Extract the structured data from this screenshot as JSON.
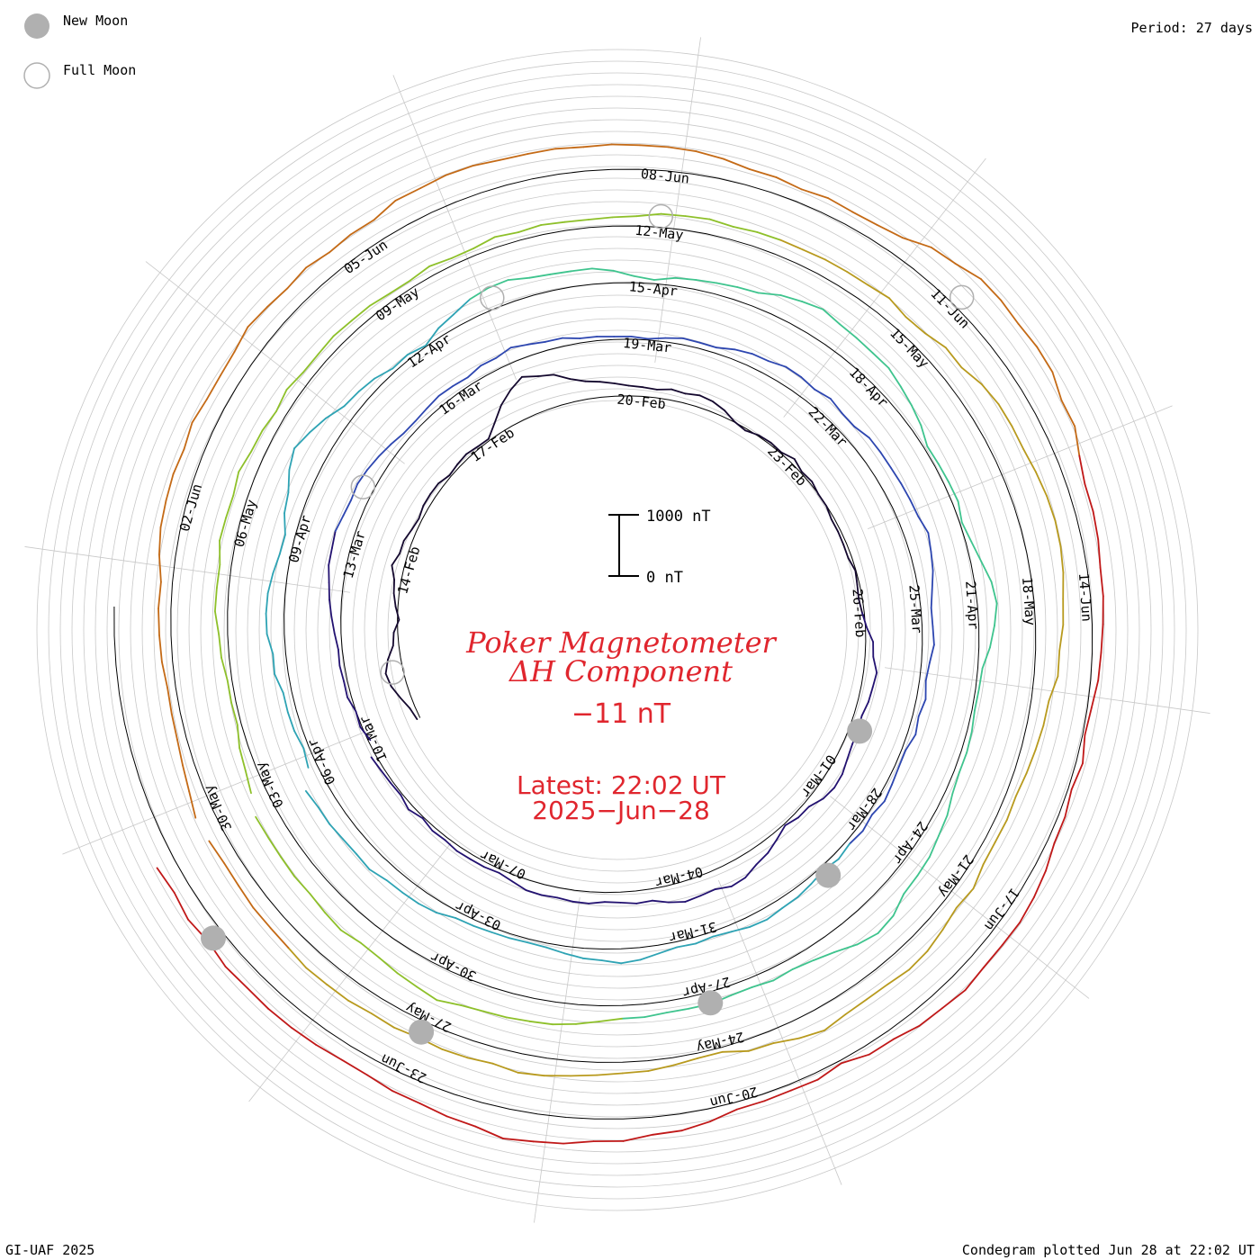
{
  "legend": {
    "new_moon_label": "New Moon",
    "full_moon_label": "Full Moon"
  },
  "period_label": "Period: 27 days",
  "credit": "GI-UAF 2025",
  "plotted_label": "Condegram plotted Jun 28 at 22:02 UT",
  "center": {
    "title_line1": "Poker Magnetometer",
    "title_line2": "ΔH Component",
    "current_value": "−11 nT",
    "latest_line1": "Latest: 22:02 UT",
    "latest_line2": "2025−Jun−28"
  },
  "scale_bar": {
    "top_label": "1000 nT",
    "bottom_label": "0 nT"
  },
  "colors": {
    "accent_text": "#e0262e",
    "ring_grid": "#c8c8c8",
    "moon_fill": "#b0b0b0",
    "moon_stroke": "#b0b0b0"
  },
  "chart_data": {
    "type": "line",
    "subtype": "condegram-spiral",
    "period_days": 27,
    "start_date": "2025-02-11",
    "end_date": "2025-06-28",
    "units": "nT",
    "scale_reference": [
      0,
      1000
    ],
    "grid": true,
    "date_labels": [
      "14-Feb",
      "17-Feb",
      "20-Feb",
      "23-Feb",
      "26-Feb",
      "01-Mar",
      "04-Mar",
      "07-Mar",
      "10-Mar",
      "13-Mar",
      "16-Mar",
      "19-Mar",
      "22-Mar",
      "25-Mar",
      "28-Mar",
      "31-Mar",
      "03-Apr",
      "06-Apr",
      "09-Apr",
      "12-Apr",
      "15-Apr",
      "18-Apr",
      "21-Apr",
      "24-Apr",
      "27-Apr",
      "30-Apr",
      "03-May",
      "06-May",
      "09-May",
      "12-May",
      "15-May",
      "18-May",
      "21-May",
      "24-May",
      "27-May",
      "30-May",
      "02-Jun",
      "05-Jun",
      "08-Jun",
      "11-Jun",
      "14-Jun",
      "17-Jun",
      "20-Jun",
      "23-Jun"
    ],
    "new_moons": [
      "2025-02-28",
      "2025-03-29",
      "2025-04-27",
      "2025-05-27",
      "2025-06-25"
    ],
    "full_moons": [
      "2025-02-12",
      "2025-03-14",
      "2025-04-13",
      "2025-05-12",
      "2025-06-11"
    ],
    "rotation_colors": [
      "#14082e",
      "#221170",
      "#2d46b0",
      "#2ea3b4",
      "#3fc48e",
      "#8ec02a",
      "#b89a1e",
      "#c46a16",
      "#c01818"
    ],
    "series": [
      {
        "start_day": 0,
        "values": [
          40,
          260,
          -40,
          170,
          70,
          55,
          45,
          620,
          300,
          110,
          185,
          -35,
          70,
          -20,
          -50,
          -15,
          220,
          115,
          215,
          30,
          320,
          280,
          150,
          170,
          80,
          45,
          55
        ]
      },
      {
        "start_day": 27,
        "values": [
          -20,
          60,
          130,
          270,
          280,
          100,
          125,
          210,
          80,
          45,
          85,
          260,
          230,
          305,
          345,
          180,
          125,
          80,
          80,
          75,
          160,
          80,
          225,
          60,
          85,
          210,
          305
        ]
      },
      {
        "start_day": 54,
        "values": [
          105,
          155,
          265,
          140,
          500,
          155,
          30,
          330,
          260,
          70,
          185,
          420,
          365,
          85,
          55,
          300,
          30,
          95,
          270,
          450,
          150,
          150,
          200,
          375,
          470,
          380,
          310
        ]
      },
      {
        "start_day": 81,
        "values": [
          195,
          50,
          165,
          255,
          200,
          150,
          125,
          140,
          120,
          200,
          240,
          280,
          250,
          445,
          550,
          470,
          305,
          160,
          220,
          315,
          320,
          85,
          170,
          295,
          245,
          330,
          245
        ]
      },
      {
        "start_day": 108,
        "values": [
          260,
          110,
          160,
          330,
          320,
          380,
          305,
          460,
          380,
          355,
          230,
          240,
          555,
          545,
          305,
          205,
          60,
          95,
          290,
          240,
          75,
          125,
          335,
          460,
          280,
          270,
          285
        ]
      }
    ]
  }
}
